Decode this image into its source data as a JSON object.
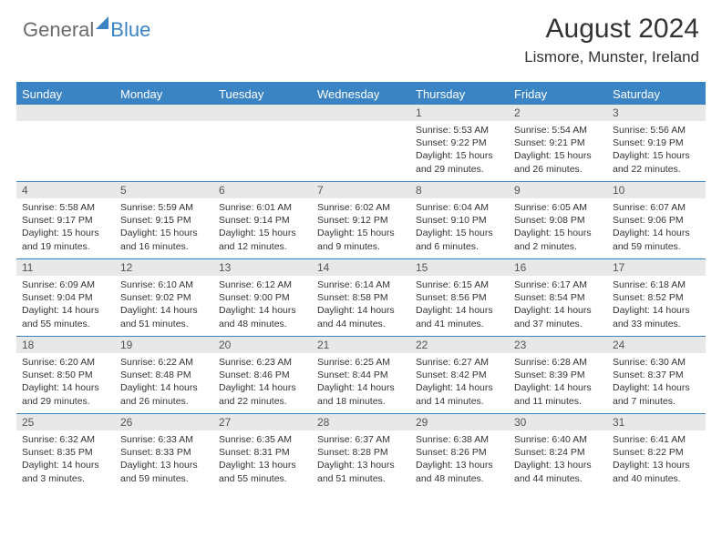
{
  "logo": {
    "text1": "General",
    "text2": "Blue"
  },
  "title": "August 2024",
  "location": "Lismore, Munster, Ireland",
  "colors": {
    "accent": "#3a84c4",
    "header_stripe": "#e8e8e8",
    "text": "#333333",
    "logo_grey": "#6b6b6b"
  },
  "days_of_week": [
    "Sunday",
    "Monday",
    "Tuesday",
    "Wednesday",
    "Thursday",
    "Friday",
    "Saturday"
  ],
  "weeks": [
    [
      {
        "n": "",
        "sunrise": "",
        "sunset": "",
        "daylight": ""
      },
      {
        "n": "",
        "sunrise": "",
        "sunset": "",
        "daylight": ""
      },
      {
        "n": "",
        "sunrise": "",
        "sunset": "",
        "daylight": ""
      },
      {
        "n": "",
        "sunrise": "",
        "sunset": "",
        "daylight": ""
      },
      {
        "n": "1",
        "sunrise": "5:53 AM",
        "sunset": "9:22 PM",
        "daylight": "15 hours and 29 minutes."
      },
      {
        "n": "2",
        "sunrise": "5:54 AM",
        "sunset": "9:21 PM",
        "daylight": "15 hours and 26 minutes."
      },
      {
        "n": "3",
        "sunrise": "5:56 AM",
        "sunset": "9:19 PM",
        "daylight": "15 hours and 22 minutes."
      }
    ],
    [
      {
        "n": "4",
        "sunrise": "5:58 AM",
        "sunset": "9:17 PM",
        "daylight": "15 hours and 19 minutes."
      },
      {
        "n": "5",
        "sunrise": "5:59 AM",
        "sunset": "9:15 PM",
        "daylight": "15 hours and 16 minutes."
      },
      {
        "n": "6",
        "sunrise": "6:01 AM",
        "sunset": "9:14 PM",
        "daylight": "15 hours and 12 minutes."
      },
      {
        "n": "7",
        "sunrise": "6:02 AM",
        "sunset": "9:12 PM",
        "daylight": "15 hours and 9 minutes."
      },
      {
        "n": "8",
        "sunrise": "6:04 AM",
        "sunset": "9:10 PM",
        "daylight": "15 hours and 6 minutes."
      },
      {
        "n": "9",
        "sunrise": "6:05 AM",
        "sunset": "9:08 PM",
        "daylight": "15 hours and 2 minutes."
      },
      {
        "n": "10",
        "sunrise": "6:07 AM",
        "sunset": "9:06 PM",
        "daylight": "14 hours and 59 minutes."
      }
    ],
    [
      {
        "n": "11",
        "sunrise": "6:09 AM",
        "sunset": "9:04 PM",
        "daylight": "14 hours and 55 minutes."
      },
      {
        "n": "12",
        "sunrise": "6:10 AM",
        "sunset": "9:02 PM",
        "daylight": "14 hours and 51 minutes."
      },
      {
        "n": "13",
        "sunrise": "6:12 AM",
        "sunset": "9:00 PM",
        "daylight": "14 hours and 48 minutes."
      },
      {
        "n": "14",
        "sunrise": "6:14 AM",
        "sunset": "8:58 PM",
        "daylight": "14 hours and 44 minutes."
      },
      {
        "n": "15",
        "sunrise": "6:15 AM",
        "sunset": "8:56 PM",
        "daylight": "14 hours and 41 minutes."
      },
      {
        "n": "16",
        "sunrise": "6:17 AM",
        "sunset": "8:54 PM",
        "daylight": "14 hours and 37 minutes."
      },
      {
        "n": "17",
        "sunrise": "6:18 AM",
        "sunset": "8:52 PM",
        "daylight": "14 hours and 33 minutes."
      }
    ],
    [
      {
        "n": "18",
        "sunrise": "6:20 AM",
        "sunset": "8:50 PM",
        "daylight": "14 hours and 29 minutes."
      },
      {
        "n": "19",
        "sunrise": "6:22 AM",
        "sunset": "8:48 PM",
        "daylight": "14 hours and 26 minutes."
      },
      {
        "n": "20",
        "sunrise": "6:23 AM",
        "sunset": "8:46 PM",
        "daylight": "14 hours and 22 minutes."
      },
      {
        "n": "21",
        "sunrise": "6:25 AM",
        "sunset": "8:44 PM",
        "daylight": "14 hours and 18 minutes."
      },
      {
        "n": "22",
        "sunrise": "6:27 AM",
        "sunset": "8:42 PM",
        "daylight": "14 hours and 14 minutes."
      },
      {
        "n": "23",
        "sunrise": "6:28 AM",
        "sunset": "8:39 PM",
        "daylight": "14 hours and 11 minutes."
      },
      {
        "n": "24",
        "sunrise": "6:30 AM",
        "sunset": "8:37 PM",
        "daylight": "14 hours and 7 minutes."
      }
    ],
    [
      {
        "n": "25",
        "sunrise": "6:32 AM",
        "sunset": "8:35 PM",
        "daylight": "14 hours and 3 minutes."
      },
      {
        "n": "26",
        "sunrise": "6:33 AM",
        "sunset": "8:33 PM",
        "daylight": "13 hours and 59 minutes."
      },
      {
        "n": "27",
        "sunrise": "6:35 AM",
        "sunset": "8:31 PM",
        "daylight": "13 hours and 55 minutes."
      },
      {
        "n": "28",
        "sunrise": "6:37 AM",
        "sunset": "8:28 PM",
        "daylight": "13 hours and 51 minutes."
      },
      {
        "n": "29",
        "sunrise": "6:38 AM",
        "sunset": "8:26 PM",
        "daylight": "13 hours and 48 minutes."
      },
      {
        "n": "30",
        "sunrise": "6:40 AM",
        "sunset": "8:24 PM",
        "daylight": "13 hours and 44 minutes."
      },
      {
        "n": "31",
        "sunrise": "6:41 AM",
        "sunset": "8:22 PM",
        "daylight": "13 hours and 40 minutes."
      }
    ]
  ],
  "labels": {
    "sunrise": "Sunrise:",
    "sunset": "Sunset:",
    "daylight": "Daylight:"
  }
}
